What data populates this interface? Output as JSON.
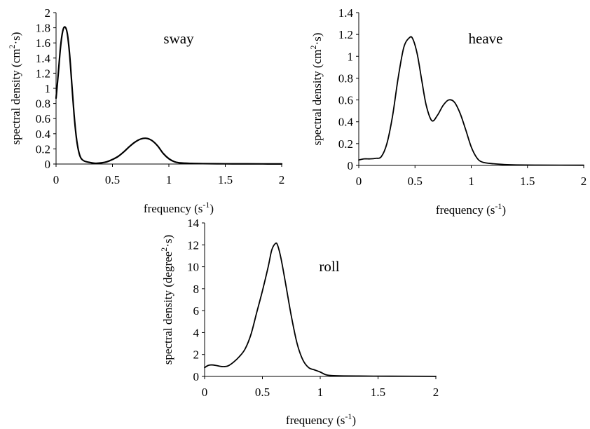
{
  "chart_data": [
    {
      "type": "line",
      "title": "sway",
      "xlabel": "frequency (s",
      "xlabel_sup": "-1",
      "xlabel_end": ")",
      "ylabel": "spectral density (cm",
      "ylabel_sup": "2",
      "ylabel_end": "·s)",
      "xlim": [
        0,
        2
      ],
      "ylim": [
        0,
        2
      ],
      "x_ticks": [
        "0",
        "0.5",
        "1",
        "1.5",
        "2"
      ],
      "y_ticks": [
        "0",
        "0.2",
        "0.4",
        "0.6",
        "0.8",
        "1",
        "1.2",
        "1.4",
        "1.6",
        "1.8",
        "2"
      ],
      "grid": false,
      "series": [
        {
          "x": [
            0,
            0.02,
            0.04,
            0.06,
            0.08,
            0.1,
            0.12,
            0.14,
            0.16,
            0.18,
            0.2,
            0.22,
            0.25,
            0.3,
            0.35,
            0.4,
            0.45,
            0.5,
            0.55,
            0.6,
            0.65,
            0.7,
            0.75,
            0.8,
            0.85,
            0.9,
            0.95,
            1.0,
            1.05,
            1.1,
            1.2,
            1.3,
            1.5,
            1.7,
            2.0
          ],
          "y": [
            0.87,
            1.2,
            1.55,
            1.76,
            1.81,
            1.72,
            1.45,
            1.05,
            0.65,
            0.35,
            0.17,
            0.08,
            0.04,
            0.02,
            0.01,
            0.015,
            0.03,
            0.06,
            0.1,
            0.16,
            0.23,
            0.29,
            0.33,
            0.34,
            0.31,
            0.24,
            0.14,
            0.07,
            0.03,
            0.015,
            0.008,
            0.005,
            0.003,
            0.002,
            0.001
          ]
        }
      ]
    },
    {
      "type": "line",
      "title": "heave",
      "xlabel": "frequency (s",
      "xlabel_sup": "-1",
      "xlabel_end": ")",
      "ylabel": "spectral density (cm",
      "ylabel_sup": "2",
      "ylabel_end": "·s)",
      "xlim": [
        0,
        2
      ],
      "ylim": [
        0,
        1.4
      ],
      "x_ticks": [
        "0",
        "0.5",
        "1",
        "1.5",
        "2"
      ],
      "y_ticks": [
        "0",
        "0.2",
        "0.4",
        "0.6",
        "0.8",
        "1",
        "1.2",
        "1.4"
      ],
      "grid": false,
      "series": [
        {
          "x": [
            0,
            0.05,
            0.1,
            0.15,
            0.2,
            0.25,
            0.3,
            0.35,
            0.4,
            0.45,
            0.48,
            0.52,
            0.56,
            0.6,
            0.65,
            0.7,
            0.75,
            0.8,
            0.85,
            0.9,
            0.95,
            1.0,
            1.05,
            1.1,
            1.2,
            1.3,
            1.4,
            1.6,
            2.0
          ],
          "y": [
            0.05,
            0.06,
            0.06,
            0.065,
            0.08,
            0.2,
            0.45,
            0.8,
            1.08,
            1.17,
            1.16,
            1.02,
            0.78,
            0.55,
            0.41,
            0.46,
            0.55,
            0.6,
            0.58,
            0.48,
            0.33,
            0.17,
            0.07,
            0.03,
            0.015,
            0.008,
            0.005,
            0.003,
            0.002
          ]
        }
      ]
    },
    {
      "type": "line",
      "title": "roll",
      "xlabel": "frequency (s",
      "xlabel_sup": "-1",
      "xlabel_end": ")",
      "ylabel": "spectral density (degree",
      "ylabel_sup": "2",
      "ylabel_end": "·s)",
      "xlim": [
        0,
        2
      ],
      "ylim": [
        0,
        14
      ],
      "x_ticks": [
        "0",
        "0.5",
        "1",
        "1.5",
        "2"
      ],
      "y_ticks": [
        "0",
        "2",
        "4",
        "6",
        "8",
        "10",
        "12",
        "14"
      ],
      "grid": false,
      "series": [
        {
          "x": [
            0,
            0.03,
            0.06,
            0.1,
            0.15,
            0.2,
            0.25,
            0.3,
            0.35,
            0.4,
            0.45,
            0.5,
            0.55,
            0.58,
            0.61,
            0.63,
            0.66,
            0.7,
            0.75,
            0.8,
            0.85,
            0.9,
            0.95,
            1.0,
            1.05,
            1.1,
            1.2,
            1.4,
            1.6,
            2.0
          ],
          "y": [
            0.8,
            1.0,
            1.05,
            1.0,
            0.9,
            0.95,
            1.3,
            1.8,
            2.5,
            3.8,
            5.8,
            7.8,
            10.0,
            11.5,
            12.1,
            12.0,
            10.8,
            8.5,
            5.5,
            3.0,
            1.5,
            0.8,
            0.6,
            0.4,
            0.15,
            0.08,
            0.05,
            0.03,
            0.02,
            0.01
          ]
        }
      ]
    }
  ]
}
